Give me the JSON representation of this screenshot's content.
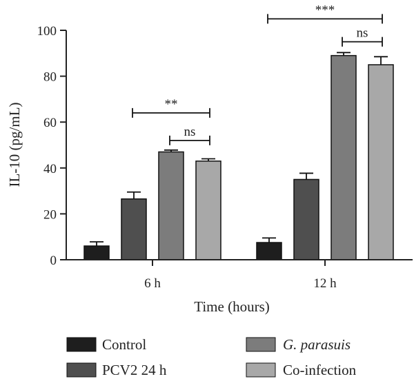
{
  "chart_data": {
    "type": "bar",
    "categories": [
      "6 h",
      "12 h"
    ],
    "series": [
      {
        "name": "Control",
        "values": [
          6,
          7.5
        ],
        "errors": [
          1.8,
          2.0
        ],
        "color": "#1e1e1e"
      },
      {
        "name": "PCV2 24 h",
        "values": [
          26.5,
          35
        ],
        "errors": [
          3.0,
          2.7
        ],
        "color": "#4f4f4f"
      },
      {
        "name": "G. parasuis",
        "values": [
          47,
          89
        ],
        "errors": [
          0.8,
          1.3
        ],
        "color": "#7c7c7c"
      },
      {
        "name": "Co-infection",
        "values": [
          43,
          85
        ],
        "errors": [
          1.0,
          3.5
        ],
        "color": "#a8a8a8"
      }
    ],
    "xlabel": "Time (hours)",
    "ylabel": "IL-10 (pg/mL)",
    "ylim": [
      0,
      100
    ],
    "yticks": [
      0,
      20,
      40,
      60,
      80,
      100
    ],
    "significance": [
      {
        "category": 0,
        "from_series": 1,
        "to_series": 3,
        "label": "**",
        "y": 64
      },
      {
        "category": 0,
        "from_series": 2,
        "to_series": 3,
        "label": "ns",
        "y": 52
      },
      {
        "category": 1,
        "from_series": 0,
        "to_series": 3,
        "label": "***",
        "y": 105
      },
      {
        "category": 1,
        "from_series": 2,
        "to_series": 3,
        "label": "ns",
        "y": 95
      }
    ],
    "legend_placement": "bottom",
    "grid": false
  },
  "legend": {
    "control": "Control",
    "pcv2": "PCV2 24 h",
    "gparasuis_italic": "G. parasuis",
    "coinfection": "Co-infection"
  }
}
